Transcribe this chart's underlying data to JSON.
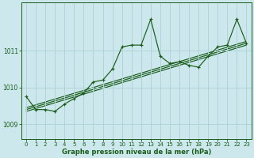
{
  "xlabel": "Graphe pression niveau de la mer (hPa)",
  "ylabel": "",
  "background_color": "#cce8ed",
  "grid_color": "#b0d4da",
  "line_color": "#1a5c1a",
  "text_color": "#1a5c1a",
  "xlim": [
    -0.5,
    23.5
  ],
  "ylim": [
    1008.6,
    1012.3
  ],
  "yticks": [
    1009,
    1010,
    1011
  ],
  "xticks": [
    0,
    1,
    2,
    3,
    4,
    5,
    6,
    7,
    8,
    9,
    10,
    11,
    12,
    13,
    14,
    15,
    16,
    17,
    18,
    19,
    20,
    21,
    22,
    23
  ],
  "series1_x": [
    0,
    1,
    2,
    3,
    4,
    5,
    6,
    7,
    8,
    9,
    10,
    11,
    12,
    13,
    14,
    15,
    16,
    17,
    18,
    19,
    20,
    21,
    22,
    23
  ],
  "series1_y": [
    1009.75,
    1009.4,
    1009.4,
    1009.35,
    1009.55,
    1009.7,
    1009.85,
    1010.15,
    1010.2,
    1010.5,
    1011.1,
    1011.15,
    1011.15,
    1011.85,
    1010.85,
    1010.65,
    1010.7,
    1010.6,
    1010.55,
    1010.85,
    1011.1,
    1011.15,
    1011.85,
    1011.2
  ],
  "trend1_x": [
    0,
    23
  ],
  "trend1_y": [
    1009.45,
    1011.25
  ],
  "trend2_x": [
    0,
    23
  ],
  "trend2_y": [
    1009.4,
    1011.2
  ],
  "trend3_x": [
    0,
    23
  ],
  "trend3_y": [
    1009.35,
    1011.15
  ]
}
